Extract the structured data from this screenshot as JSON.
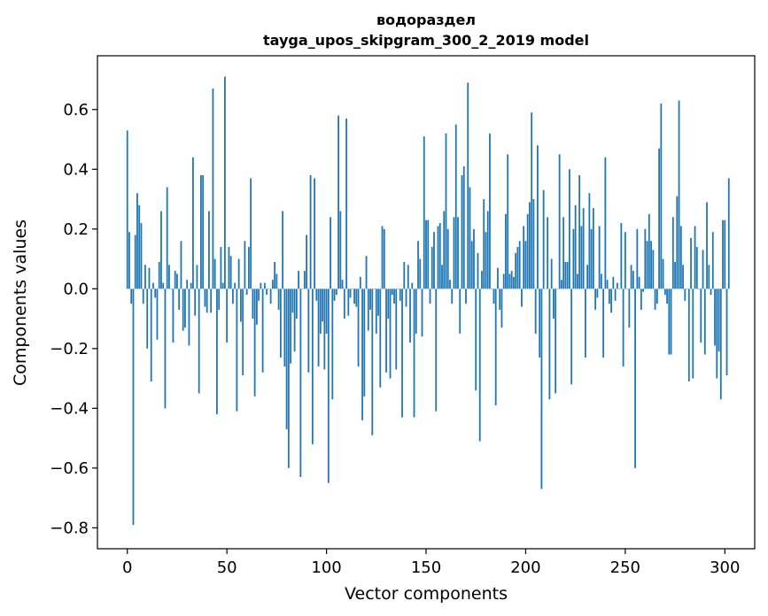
{
  "chart_data": {
    "type": "bar",
    "title": "водораздел",
    "subtitle": "tayga_upos_skipgram_300_2_2019 model",
    "xlabel": "Vector components",
    "ylabel": "Components values",
    "xlim": [
      -15,
      315
    ],
    "ylim": [
      -0.87,
      0.78
    ],
    "xticks": [
      0,
      50,
      100,
      150,
      200,
      250,
      300
    ],
    "yticks": [
      -0.8,
      -0.6,
      -0.4,
      -0.2,
      0.0,
      0.2,
      0.4,
      0.6
    ],
    "ytick_labels": [
      "−0.8",
      "−0.6",
      "−0.4",
      "−0.2",
      "0.0",
      "0.2",
      "0.4",
      "0.6"
    ],
    "grid": false,
    "bar_color": "#1f77b4",
    "series": [
      {
        "values": [
          0.53,
          0.19,
          -0.05,
          -0.79,
          0.18,
          0.32,
          0.28,
          0.22,
          -0.05,
          0.08,
          -0.2,
          0.07,
          -0.31,
          0.02,
          -0.03,
          -0.17,
          0.09,
          0.26,
          0.02,
          -0.4,
          0.34,
          0.08,
          0.0,
          -0.18,
          0.06,
          0.05,
          -0.07,
          0.16,
          -0.14,
          -0.13,
          0.03,
          -0.19,
          0.02,
          0.44,
          -0.09,
          0.08,
          -0.35,
          0.38,
          0.38,
          -0.06,
          -0.08,
          0.26,
          -0.08,
          0.67,
          0.1,
          -0.42,
          -0.07,
          0.14,
          0.02,
          0.71,
          -0.18,
          0.14,
          0.11,
          -0.05,
          0.02,
          -0.41,
          0.1,
          -0.11,
          -0.29,
          0.16,
          -0.02,
          0.14,
          0.37,
          -0.1,
          -0.36,
          -0.12,
          -0.04,
          0.02,
          -0.28,
          0.02,
          -0.02,
          0.0,
          -0.05,
          0.03,
          0.09,
          0.05,
          -0.07,
          -0.23,
          0.26,
          -0.26,
          -0.47,
          -0.6,
          -0.25,
          -0.08,
          -0.21,
          -0.1,
          0.06,
          -0.63,
          0.0,
          0.06,
          0.18,
          -0.28,
          0.38,
          -0.52,
          0.37,
          -0.04,
          -0.26,
          -0.15,
          -0.11,
          -0.27,
          -0.15,
          -0.65,
          0.24,
          -0.37,
          -0.04,
          -0.02,
          0.58,
          0.26,
          0.03,
          -0.1,
          0.57,
          -0.09,
          -0.03,
          0.0,
          -0.05,
          -0.06,
          -0.26,
          0.04,
          -0.44,
          -0.36,
          0.11,
          -0.14,
          -0.07,
          -0.49,
          0.0,
          -0.15,
          -0.09,
          -0.33,
          0.21,
          0.2,
          -0.28,
          -0.1,
          -0.3,
          -0.02,
          -0.05,
          -0.27,
          0.0,
          -0.04,
          -0.43,
          0.09,
          -0.06,
          0.08,
          -0.18,
          0.02,
          -0.43,
          -0.15,
          0.16,
          0.1,
          -0.16,
          0.51,
          0.23,
          0.23,
          -0.05,
          0.14,
          0.19,
          -0.41,
          0.21,
          0.22,
          0.08,
          0.26,
          0.52,
          0.2,
          0.03,
          -0.05,
          0.24,
          0.55,
          0.24,
          -0.15,
          0.38,
          0.41,
          -0.05,
          0.69,
          0.34,
          0.16,
          0.2,
          -0.34,
          0.12,
          -0.51,
          0.06,
          0.3,
          0.19,
          0.26,
          0.52,
          0.0,
          -0.05,
          -0.39,
          0.07,
          -0.07,
          -0.13,
          0.05,
          0.25,
          0.45,
          0.05,
          0.06,
          0.04,
          0.12,
          0.14,
          0.16,
          -0.06,
          0.21,
          0.16,
          0.25,
          0.29,
          0.59,
          0.3,
          -0.15,
          0.48,
          -0.23,
          -0.67,
          0.33,
          0.0,
          0.24,
          -0.37,
          0.1,
          -0.1,
          -0.35,
          0.0,
          0.45,
          0.03,
          0.24,
          0.09,
          0.09,
          0.4,
          -0.32,
          0.2,
          0.28,
          0.05,
          0.38,
          0.21,
          0.27,
          -0.23,
          0.08,
          0.32,
          0.2,
          0.27,
          -0.07,
          -0.03,
          0.21,
          0.05,
          -0.23,
          0.44,
          0.03,
          -0.05,
          -0.08,
          0.04,
          -0.04,
          0.02,
          0.0,
          0.22,
          -0.26,
          0.19,
          0.0,
          -0.13,
          0.08,
          0.06,
          -0.6,
          0.2,
          0.04,
          -0.07,
          -0.01,
          0.2,
          0.16,
          0.25,
          0.16,
          0.13,
          -0.07,
          -0.05,
          0.47,
          0.62,
          0.1,
          -0.02,
          -0.05,
          -0.22,
          -0.22,
          0.24,
          0.09,
          0.31,
          0.63,
          0.21,
          0.08,
          -0.04,
          0.0,
          -0.31,
          0.17,
          -0.3,
          0.21,
          0.14,
          0.0,
          -0.18,
          0.13,
          -0.22,
          0.29,
          0.08,
          -0.02,
          0.19,
          -0.19,
          -0.3,
          -0.21,
          -0.37,
          0.23,
          0.23,
          -0.29,
          0.37
        ]
      }
    ]
  }
}
